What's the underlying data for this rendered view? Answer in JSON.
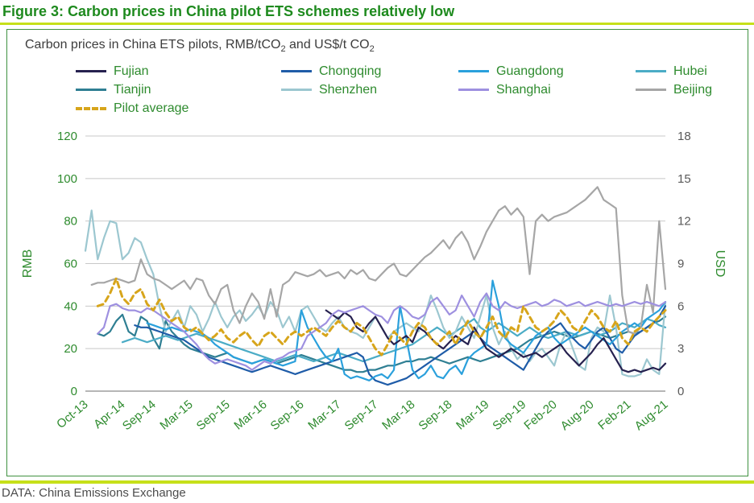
{
  "palette": {
    "title_green": "#1e8a1e",
    "label_green": "#2e8b2e",
    "chartreuse": "#c6e019",
    "box_border": "#3f9140",
    "grid": "#c8c8c8",
    "axis_line": "#9e9e9e",
    "right_tick_gray": "#595959",
    "subtitle_gray": "#3d3d3d",
    "footer_gray": "#4d4d4d"
  },
  "header": {
    "figure_title": "Figure 3: Carbon prices in China pilot ETS schemes relatively low",
    "subtitle_parts": [
      {
        "t": "Carbon prices in China ETS pilots, RMB/tCO"
      },
      {
        "t": "2",
        "sub": true
      },
      {
        "t": " and US$/t CO"
      },
      {
        "t": "2",
        "sub": true
      }
    ]
  },
  "legend": {
    "rows": [
      [
        {
          "label": "Fujian",
          "color": "#26214f",
          "dash": false
        },
        {
          "label": "Chongqing",
          "color": "#1f5ca8",
          "dash": false
        },
        {
          "label": "Guangdong",
          "color": "#2aa0dc",
          "dash": false
        },
        {
          "label": "Hubei",
          "color": "#4bacc6",
          "dash": false
        }
      ],
      [
        {
          "label": "Tianjin",
          "color": "#2f7f93",
          "dash": false
        },
        {
          "label": "Shenzhen",
          "color": "#9cc7d0",
          "dash": false
        },
        {
          "label": "Shanghai",
          "color": "#9e90e0",
          "dash": false
        },
        {
          "label": "Beijing",
          "color": "#a6a6a6",
          "dash": false
        }
      ],
      [
        {
          "label": "Pilot average",
          "color": "#d7a51b",
          "dash": true
        }
      ]
    ]
  },
  "footer": {
    "source": "DATA: China Emissions Exchange"
  },
  "chart_data": {
    "type": "line",
    "title": "Carbon prices in China ETS pilots, RMB/tCO2 and US$/t CO2",
    "x_axis": {
      "unit": "month",
      "start": "Oct-13",
      "end": "Aug-21",
      "months_total": 95,
      "tick_labels": [
        "Oct-13",
        "Apr-14",
        "Sep-14",
        "Mar-15",
        "Sep-15",
        "Mar-16",
        "Sep-16",
        "Mar-17",
        "Sep-17",
        "Mar-18",
        "Sep-18",
        "Mar-19",
        "Sep-19",
        "Feb-20",
        "Aug-20",
        "Feb-21",
        "Aug-21"
      ],
      "tick_month_index": [
        0,
        6,
        11,
        17,
        23,
        29,
        35,
        41,
        47,
        53,
        59,
        65,
        71,
        76,
        82,
        88,
        94
      ]
    },
    "y_left": {
      "label": "RMB",
      "ticks": [
        0,
        20,
        40,
        60,
        80,
        100,
        120
      ],
      "min": 0,
      "max": 120
    },
    "y_right": {
      "label": "USD",
      "ticks": [
        0,
        3,
        6,
        9,
        12,
        15,
        18
      ],
      "min": 0,
      "max": 18
    },
    "grid": true,
    "legend_position": "top",
    "series": [
      {
        "name": "Tianjin",
        "color": "#2f7f93",
        "dash": false,
        "start_month": 2,
        "values": [
          27,
          26,
          28,
          33,
          36,
          28,
          26,
          35,
          33,
          25,
          20,
          33,
          28,
          25,
          22,
          20,
          19,
          18,
          17,
          16,
          17,
          18,
          16,
          15,
          14,
          13,
          14,
          15,
          14,
          13,
          14,
          15,
          16,
          17,
          16,
          15,
          14,
          13,
          12,
          11,
          10,
          10,
          9,
          9,
          10,
          10,
          11,
          12,
          12,
          13,
          14,
          14,
          15,
          15,
          16,
          15,
          14,
          13,
          14,
          15,
          16,
          15,
          14,
          15,
          16,
          17,
          18,
          19,
          20,
          22,
          24,
          25,
          26,
          27,
          28,
          27,
          26,
          25,
          26,
          27,
          28,
          27,
          26,
          25,
          26,
          27,
          28,
          27,
          28,
          30,
          32,
          33,
          35
        ]
      },
      {
        "name": "Hubei",
        "color": "#4bacc6",
        "dash": false,
        "start_month": 6,
        "values": [
          23,
          24,
          25,
          24,
          23,
          24,
          25,
          26,
          25,
          24,
          25,
          26,
          27,
          26,
          25,
          24,
          23,
          22,
          21,
          20,
          19,
          18,
          17,
          16,
          15,
          14,
          15,
          16,
          17,
          16,
          15,
          14,
          15,
          16,
          17,
          18,
          17,
          16,
          15,
          14,
          15,
          16,
          17,
          18,
          19,
          20,
          21,
          22,
          24,
          26,
          28,
          30,
          28,
          26,
          28,
          30,
          32,
          34,
          30,
          28,
          30,
          32,
          30,
          28,
          26,
          28,
          30,
          28,
          26,
          25,
          26,
          27,
          28,
          27,
          26,
          27,
          28,
          26,
          27,
          28,
          30,
          32,
          31,
          30,
          32,
          34,
          33,
          31,
          30
        ]
      },
      {
        "name": "Shenzhen",
        "color": "#9cc7d0",
        "dash": false,
        "start_month": 0,
        "values": [
          66,
          85,
          62,
          72,
          80,
          79,
          62,
          65,
          72,
          70,
          62,
          55,
          40,
          28,
          33,
          38,
          30,
          40,
          36,
          28,
          34,
          42,
          35,
          30,
          35,
          38,
          33,
          36,
          40,
          35,
          42,
          38,
          30,
          35,
          28,
          38,
          40,
          35,
          30,
          28,
          32,
          35,
          30,
          28,
          27,
          25,
          30,
          35,
          30,
          25,
          28,
          30,
          32,
          30,
          28,
          35,
          45,
          38,
          30,
          25,
          28,
          35,
          30,
          25,
          35,
          45,
          30,
          22,
          28,
          20,
          15,
          18,
          14,
          18,
          20,
          16,
          12,
          22,
          28,
          20,
          12,
          10,
          25,
          30,
          28,
          45,
          30,
          8,
          7,
          7,
          8,
          15,
          10,
          8,
          42
        ]
      },
      {
        "name": "Chongqing",
        "color": "#1f5ca8",
        "dash": false,
        "start_month": 8,
        "values": [
          31,
          30,
          30,
          29,
          28,
          27,
          26,
          25,
          24,
          22,
          20,
          18,
          16,
          15,
          14,
          13,
          12,
          11,
          10,
          9,
          10,
          11,
          12,
          11,
          10,
          9,
          8,
          9,
          10,
          11,
          12,
          13,
          14,
          15,
          16,
          17,
          18,
          16,
          8,
          5,
          4,
          3,
          4,
          5,
          6,
          8,
          10,
          12,
          14,
          16,
          18,
          20,
          22,
          24,
          26,
          28,
          25,
          22,
          20,
          18,
          16,
          14,
          12,
          10,
          15,
          20,
          25,
          28,
          30,
          32,
          28,
          25,
          22,
          20,
          24,
          28,
          30,
          25,
          20,
          18,
          22,
          26,
          28,
          30,
          32,
          35,
          40
        ]
      },
      {
        "name": "Guangdong",
        "color": "#2aa0dc",
        "dash": false,
        "start_month": 10,
        "values": [
          32,
          31,
          30,
          29,
          30,
          29,
          28,
          29,
          28,
          27,
          25,
          22,
          20,
          18,
          16,
          15,
          14,
          13,
          14,
          15,
          14,
          13,
          12,
          13,
          14,
          38,
          30,
          25,
          20,
          16,
          14,
          20,
          8,
          6,
          7,
          6,
          5,
          7,
          8,
          6,
          10,
          40,
          25,
          10,
          6,
          8,
          12,
          7,
          6,
          10,
          12,
          8,
          15,
          18,
          20,
          22,
          52,
          40,
          25,
          22,
          20,
          18,
          22,
          26,
          28,
          30,
          25,
          22,
          24,
          26,
          28,
          30,
          28,
          26,
          24,
          22,
          25,
          28,
          30,
          32,
          30,
          34,
          36,
          38,
          42
        ]
      },
      {
        "name": "Fujian",
        "color": "#26214f",
        "dash": false,
        "start_month": 39,
        "values": [
          38,
          36,
          34,
          37,
          35,
          30,
          28,
          32,
          35,
          30,
          25,
          22,
          24,
          26,
          23,
          30,
          28,
          25,
          22,
          20,
          23,
          26,
          24,
          22,
          30,
          25,
          20,
          18,
          16,
          18,
          20,
          18,
          16,
          17,
          18,
          16,
          18,
          20,
          22,
          18,
          15,
          12,
          15,
          18,
          22,
          25,
          20,
          15,
          10,
          9,
          10,
          9,
          10,
          11,
          10,
          13
        ]
      },
      {
        "name": "Beijing",
        "color": "#a6a6a6",
        "dash": false,
        "start_month": 1,
        "values": [
          50,
          51,
          51,
          52,
          53,
          52,
          51,
          52,
          62,
          55,
          53,
          52,
          50,
          48,
          50,
          52,
          48,
          53,
          52,
          45,
          41,
          48,
          50,
          38,
          32,
          40,
          46,
          42,
          34,
          48,
          35,
          50,
          52,
          56,
          55,
          54,
          55,
          57,
          54,
          55,
          56,
          53,
          57,
          55,
          57,
          53,
          52,
          55,
          58,
          60,
          55,
          54,
          57,
          60,
          63,
          65,
          68,
          71,
          67,
          72,
          75,
          70,
          62,
          68,
          75,
          80,
          85,
          87,
          83,
          86,
          82,
          55,
          80,
          83,
          80,
          82,
          83,
          84,
          86,
          88,
          90,
          93,
          96,
          90,
          88,
          86,
          45,
          28,
          27,
          30,
          50,
          37,
          80,
          48
        ]
      },
      {
        "name": "Shanghai",
        "color": "#9e90e0",
        "dash": false,
        "start_month": 2,
        "values": [
          27,
          30,
          40,
          41,
          39,
          38,
          38,
          37,
          39,
          38,
          36,
          34,
          32,
          30,
          28,
          25,
          22,
          18,
          15,
          13,
          14,
          15,
          14,
          13,
          12,
          10,
          12,
          14,
          13,
          15,
          16,
          18,
          19,
          20,
          26,
          28,
          30,
          32,
          36,
          38,
          37,
          38,
          39,
          40,
          38,
          36,
          35,
          32,
          38,
          40,
          38,
          35,
          34,
          36,
          42,
          44,
          40,
          36,
          38,
          45,
          40,
          35,
          42,
          46,
          40,
          38,
          42,
          40,
          39,
          40,
          41,
          42,
          40,
          41,
          43,
          42,
          40,
          41,
          42,
          40,
          41,
          42,
          41,
          40,
          41,
          40,
          41,
          42,
          41,
          42,
          41,
          40,
          42
        ]
      },
      {
        "name": "Pilot average",
        "color": "#d7a51b",
        "dash": true,
        "start_month": 2,
        "values": [
          40,
          41,
          46,
          53,
          44,
          41,
          46,
          48,
          41,
          38,
          43,
          37,
          33,
          35,
          30,
          28,
          30,
          27,
          24,
          26,
          29,
          25,
          23,
          26,
          28,
          24,
          21,
          26,
          28,
          25,
          22,
          26,
          28,
          26,
          28,
          30,
          28,
          26,
          30,
          33,
          30,
          28,
          32,
          30,
          25,
          20,
          17,
          22,
          28,
          25,
          22,
          28,
          32,
          30,
          25,
          22,
          25,
          28,
          22,
          28,
          33,
          28,
          25,
          30,
          35,
          28,
          25,
          30,
          28,
          40,
          35,
          30,
          28,
          30,
          33,
          38,
          35,
          30,
          28,
          33,
          38,
          35,
          30,
          28,
          33,
          25,
          22,
          28,
          30,
          28,
          32,
          35,
          38
        ]
      }
    ]
  }
}
